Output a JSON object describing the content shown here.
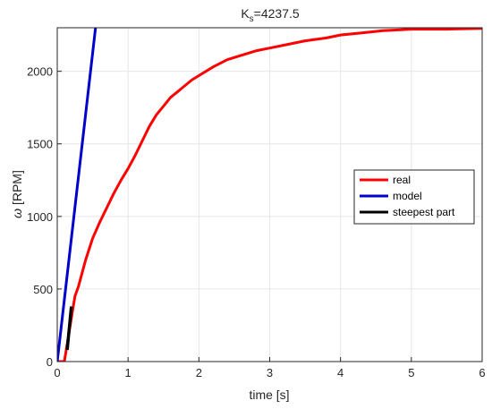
{
  "chart_data": {
    "type": "line",
    "title_base": "K",
    "title_sub": "s",
    "title_rest": "=4237.5",
    "xlabel": "time [s]",
    "ylabel_symbol": "ω",
    "ylabel_unit": " [RPM]",
    "xlim": [
      0,
      6
    ],
    "ylim": [
      0,
      2300
    ],
    "xticks": [
      0,
      1,
      2,
      3,
      4,
      5,
      6
    ],
    "yticks": [
      0,
      500,
      1000,
      1500,
      2000
    ],
    "grid": true,
    "legend_position": "center-right",
    "series": [
      {
        "name": "real",
        "color": "#ff0000",
        "points": [
          [
            0,
            0
          ],
          [
            0.1,
            0
          ],
          [
            0.15,
            150
          ],
          [
            0.2,
            300
          ],
          [
            0.25,
            450
          ],
          [
            0.3,
            520
          ],
          [
            0.4,
            700
          ],
          [
            0.5,
            850
          ],
          [
            0.6,
            960
          ],
          [
            0.7,
            1060
          ],
          [
            0.8,
            1160
          ],
          [
            0.9,
            1250
          ],
          [
            1.0,
            1330
          ],
          [
            1.1,
            1420
          ],
          [
            1.2,
            1520
          ],
          [
            1.3,
            1620
          ],
          [
            1.4,
            1700
          ],
          [
            1.5,
            1760
          ],
          [
            1.6,
            1820
          ],
          [
            1.7,
            1860
          ],
          [
            1.8,
            1900
          ],
          [
            1.9,
            1940
          ],
          [
            2.0,
            1970
          ],
          [
            2.2,
            2030
          ],
          [
            2.4,
            2080
          ],
          [
            2.6,
            2110
          ],
          [
            2.8,
            2140
          ],
          [
            3.0,
            2160
          ],
          [
            3.2,
            2180
          ],
          [
            3.5,
            2210
          ],
          [
            3.8,
            2230
          ],
          [
            4.0,
            2250
          ],
          [
            4.3,
            2265
          ],
          [
            4.6,
            2280
          ],
          [
            5.0,
            2290
          ],
          [
            5.5,
            2290
          ],
          [
            6.0,
            2295
          ]
        ]
      },
      {
        "name": "model",
        "color": "#0000cc",
        "points": [
          [
            0,
            0
          ],
          [
            0.54,
            2300
          ]
        ]
      },
      {
        "name": "steepest part",
        "color": "#000000",
        "points": [
          [
            0.14,
            80
          ],
          [
            0.2,
            380
          ]
        ]
      }
    ]
  }
}
